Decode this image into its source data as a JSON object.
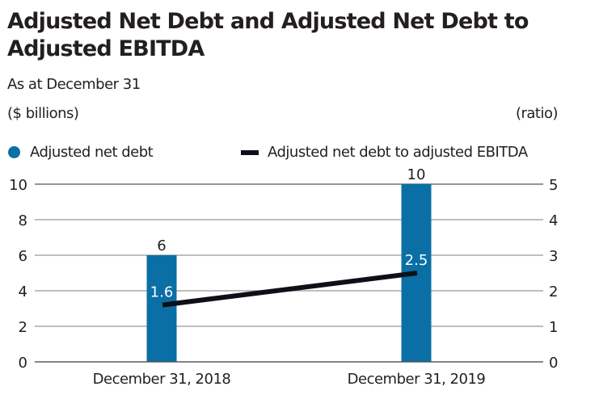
{
  "title": "Adjusted Net Debt and Adjusted Net Debt to Adjusted EBITDA",
  "subtitle": "As at December 31",
  "units": {
    "left": "($ billions)",
    "right": "(ratio)"
  },
  "legend": [
    {
      "label": "Adjusted net debt",
      "marker": "circle",
      "color": "#0a6fa5"
    },
    {
      "label": "Adjusted net debt to adjusted EBITDA",
      "marker": "line",
      "color": "#0d1117"
    }
  ],
  "chart_data": {
    "type": "bar",
    "title": "Adjusted Net Debt and Adjusted Net Debt to Adjusted EBITDA",
    "subtitle": "As at December 31",
    "categories": [
      "December 31, 2018",
      "December 31, 2019"
    ],
    "series": [
      {
        "name": "Adjusted net debt",
        "type": "bar",
        "axis": "left",
        "values": [
          6,
          10
        ],
        "labels": [
          "6",
          "10"
        ],
        "color": "#0a6fa5"
      },
      {
        "name": "Adjusted net debt to adjusted EBITDA",
        "type": "line",
        "axis": "right",
        "values": [
          1.6,
          2.5
        ],
        "labels": [
          "1.6",
          "2.5"
        ],
        "color": "#0d1117"
      }
    ],
    "ylabel": "($ billions)",
    "y2label": "(ratio)",
    "ylim": [
      0,
      10
    ],
    "y2lim": [
      0,
      5
    ],
    "yticks": [
      0,
      2,
      4,
      6,
      8,
      10
    ],
    "y2ticks": [
      0,
      1,
      2,
      3,
      4,
      5
    ],
    "grid": true,
    "legend_position": "top"
  }
}
